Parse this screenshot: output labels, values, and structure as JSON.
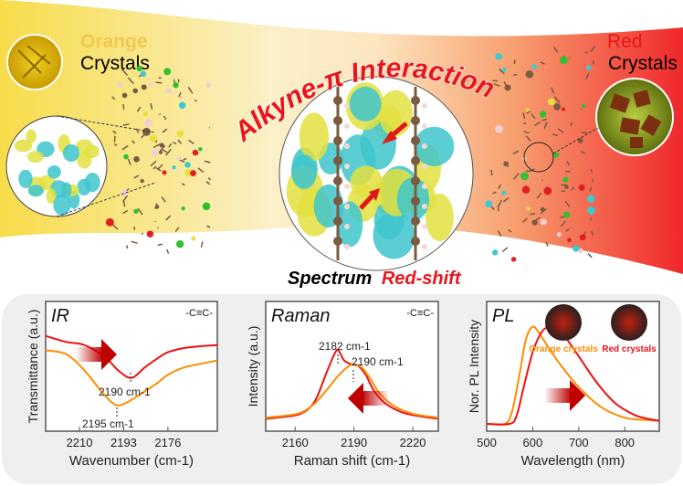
{
  "top": {
    "orange_word": "Orange",
    "orange_crystals": "Crystals",
    "red_word": "Red",
    "red_crystals": "Crystals",
    "interaction_title": "Alkyne-π Interaction",
    "spectrum_label": "Spectrum",
    "redshift_label": "Red-shift"
  },
  "colors": {
    "orange_curve": "#ff8c00",
    "red_curve": "#ee1111",
    "title_red": "#e8161b",
    "orange_text": "#f5a623",
    "yellow_bg": "#f6d84a",
    "red_bg": "#f23a3a"
  },
  "chart_data": [
    {
      "type": "line",
      "title": "IR",
      "annotation": "-C≡C-",
      "xlabel": "Wavenumber (cm-1)",
      "ylabel": "Transmittance (a.u.)",
      "xlim": [
        2223,
        2157
      ],
      "x_reversed": true,
      "xticks": [
        2210,
        2193,
        2176
      ],
      "ylim": [
        0,
        1
      ],
      "series": [
        {
          "color": "red",
          "x": [
            2223,
            2215,
            2208,
            2200,
            2195,
            2190,
            2185,
            2180,
            2176,
            2170,
            2163,
            2157
          ],
          "y": [
            0.86,
            0.8,
            0.77,
            0.65,
            0.52,
            0.45,
            0.55,
            0.64,
            0.7,
            0.74,
            0.76,
            0.77
          ]
        },
        {
          "color": "orange",
          "x": [
            2223,
            2215,
            2208,
            2202,
            2198,
            2195,
            2191,
            2186,
            2180,
            2176,
            2170,
            2163,
            2157
          ],
          "y": [
            0.72,
            0.68,
            0.52,
            0.33,
            0.22,
            0.18,
            0.22,
            0.3,
            0.4,
            0.48,
            0.55,
            0.59,
            0.62
          ]
        }
      ],
      "peak_labels": [
        "2190 cm-1",
        "2195 cm-1"
      ]
    },
    {
      "type": "line",
      "title": "Raman",
      "annotation": "-C≡C-",
      "xlabel": "Raman shift (cm-1)",
      "ylabel": "Intensity (a.u.)",
      "xlim": [
        2145,
        2233
      ],
      "xticks": [
        2160,
        2190,
        2220
      ],
      "ylim": [
        0,
        1
      ],
      "series": [
        {
          "color": "red",
          "x": [
            2145,
            2155,
            2163,
            2170,
            2176,
            2180,
            2182,
            2185,
            2189,
            2192,
            2196,
            2200,
            2206,
            2215,
            2225,
            2233
          ],
          "y": [
            0.05,
            0.07,
            0.1,
            0.22,
            0.5,
            0.68,
            0.72,
            0.62,
            0.58,
            0.57,
            0.48,
            0.33,
            0.2,
            0.11,
            0.07,
            0.05
          ]
        },
        {
          "color": "orange",
          "x": [
            2145,
            2155,
            2163,
            2170,
            2176,
            2182,
            2187,
            2190,
            2194,
            2198,
            2203,
            2210,
            2218,
            2225,
            2233
          ],
          "y": [
            0.06,
            0.08,
            0.11,
            0.2,
            0.33,
            0.47,
            0.56,
            0.58,
            0.55,
            0.45,
            0.3,
            0.18,
            0.11,
            0.08,
            0.06
          ]
        }
      ],
      "peak_labels": [
        "2182 cm-1",
        "2190 cm-1"
      ]
    },
    {
      "type": "line",
      "title": "PL",
      "xlabel": "Wavelength (nm)",
      "ylabel": "Nor. PL Intensity",
      "xlim": [
        500,
        875
      ],
      "xticks": [
        500,
        600,
        700,
        800
      ],
      "ylim": [
        0,
        1
      ],
      "legend": [
        "Orange crystals",
        "Red crystals"
      ],
      "series": [
        {
          "name": "Orange crystals",
          "color": "orange",
          "x": [
            500,
            540,
            555,
            570,
            585,
            600,
            615,
            635,
            660,
            700,
            750,
            800,
            840,
            875
          ],
          "y": [
            0,
            0,
            0.12,
            0.45,
            0.82,
            0.95,
            0.88,
            0.74,
            0.58,
            0.36,
            0.16,
            0.06,
            0.04,
            0.03
          ]
        },
        {
          "name": "Red crystals",
          "color": "red",
          "x": [
            500,
            550,
            565,
            580,
            600,
            620,
            640,
            665,
            700,
            740,
            780,
            820,
            850,
            875
          ],
          "y": [
            0,
            0,
            0.08,
            0.35,
            0.7,
            0.9,
            0.95,
            0.88,
            0.66,
            0.4,
            0.2,
            0.09,
            0.05,
            0.03
          ]
        }
      ]
    }
  ]
}
